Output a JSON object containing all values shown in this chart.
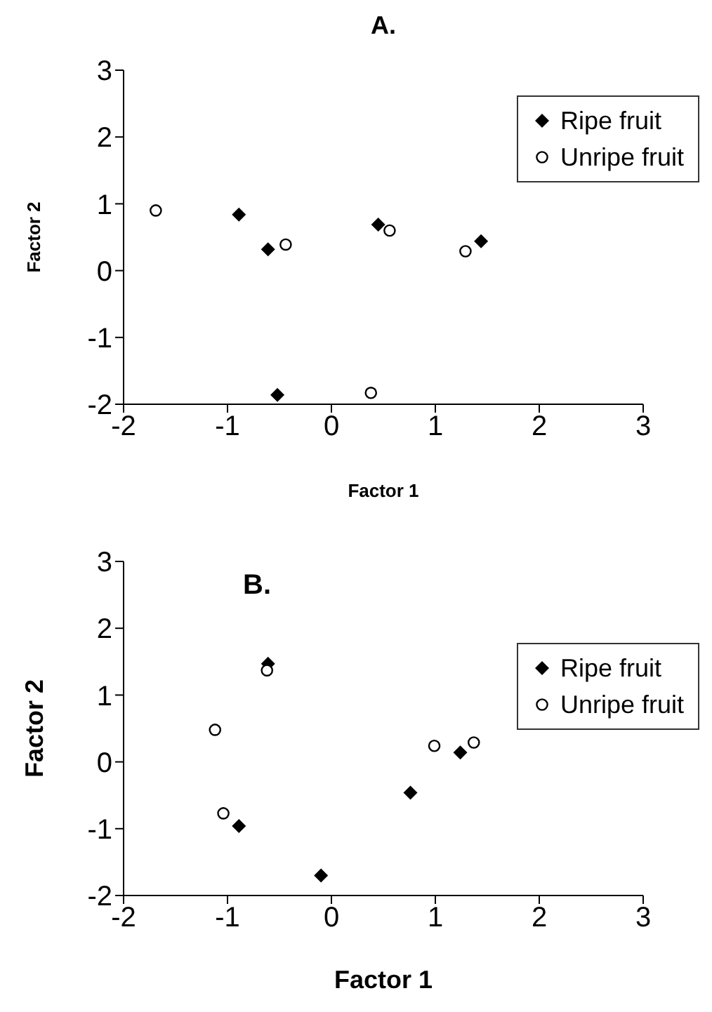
{
  "chart_data": [
    {
      "type": "scatter",
      "title": "A.",
      "xlabel": "Factor 1",
      "ylabel": "Factor 2",
      "xlim": [
        -2,
        3
      ],
      "xticks": [
        -2,
        -1,
        0,
        1,
        2,
        3
      ],
      "ylim": [
        -2,
        3
      ],
      "yticks": [
        -2,
        -1,
        0,
        1,
        2,
        3
      ],
      "grid": false,
      "legend": "top right",
      "series": [
        {
          "name": "Ripe fruit",
          "color": "#000000",
          "marker": "diamond",
          "x": [
            -0.89,
            -0.61,
            0.45,
            1.44,
            -0.52
          ],
          "values": [
            0.84,
            0.32,
            0.69,
            0.44,
            -1.86
          ]
        },
        {
          "name": "Unripe fruit",
          "color": "#000000",
          "marker": "circle",
          "x": [
            -1.69,
            -0.44,
            0.56,
            1.29,
            0.38
          ],
          "values": [
            0.9,
            0.39,
            0.6,
            0.29,
            -1.83
          ]
        }
      ]
    },
    {
      "type": "scatter",
      "title": "B.",
      "xlabel": "Factor 1",
      "ylabel": "Factor 2",
      "xlim": [
        -2,
        3
      ],
      "xticks": [
        -2,
        -1,
        0,
        1,
        2,
        3
      ],
      "ylim": [
        -2,
        3
      ],
      "yticks": [
        -2,
        -1,
        0,
        1,
        2,
        3
      ],
      "grid": false,
      "legend": "top right",
      "series": [
        {
          "name": "Ripe fruit",
          "color": "#000000",
          "marker": "diamond",
          "x": [
            -0.61,
            -0.89,
            -0.1,
            0.76,
            1.24
          ],
          "values": [
            1.47,
            -0.96,
            -1.7,
            -0.46,
            0.14
          ]
        },
        {
          "name": "Unripe fruit",
          "color": "#000000",
          "marker": "circle",
          "x": [
            -0.62,
            -1.12,
            -1.04,
            0.99,
            1.37
          ],
          "values": [
            1.37,
            0.48,
            -0.77,
            0.24,
            0.29
          ]
        }
      ]
    }
  ]
}
